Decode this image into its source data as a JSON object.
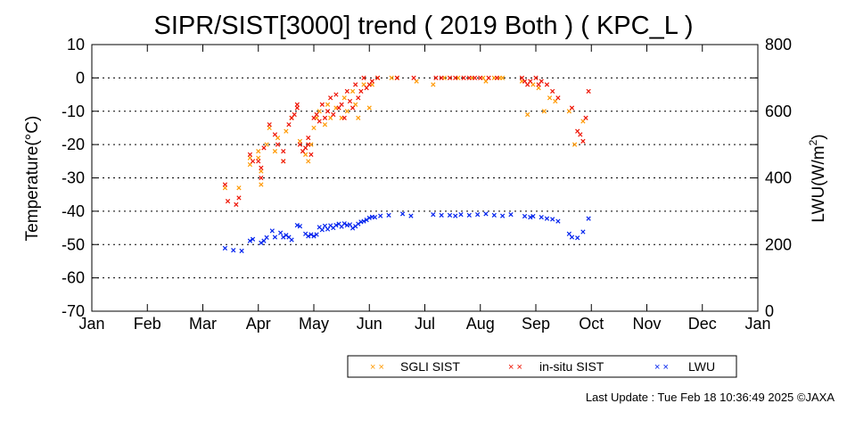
{
  "chart_data": {
    "type": "scatter",
    "title": "SIPR/SIST[3000] trend ( 2019 Both ) ( KPC_L )",
    "ylabel": "Temperature(°C)",
    "y2label_main": "LWU(W/m",
    "y2label_sup": "2",
    "y2label_end": ")",
    "ylim": [
      -70,
      10
    ],
    "yticks": [
      "10",
      "0",
      "-10",
      "-20",
      "-30",
      "-40",
      "-50",
      "-60",
      "-70"
    ],
    "y2lim": [
      0,
      800
    ],
    "y2ticks": [
      "800",
      "600",
      "400",
      "200",
      "0"
    ],
    "months": [
      "Jan",
      "Feb",
      "Mar",
      "Apr",
      "May",
      "Jun",
      "Jul",
      "Aug",
      "Sep",
      "Oct",
      "Nov",
      "Dec",
      "Jan"
    ],
    "grid": "dotted horizontal",
    "legend_position": "bottom-right",
    "series": [
      {
        "name": "SGLI SIST",
        "color": "#ff9900",
        "axis": "left",
        "points": [
          [
            3.4,
            -33
          ],
          [
            3.65,
            -33
          ],
          [
            3.85,
            -24
          ],
          [
            3.85,
            -26
          ],
          [
            4.0,
            -22
          ],
          [
            4.0,
            -24
          ],
          [
            4.05,
            -28
          ],
          [
            4.05,
            -32
          ],
          [
            4.15,
            -20
          ],
          [
            4.2,
            -15
          ],
          [
            4.3,
            -22
          ],
          [
            4.35,
            -18
          ],
          [
            4.45,
            -25
          ],
          [
            4.5,
            -16
          ],
          [
            4.6,
            -12
          ],
          [
            4.75,
            -19
          ],
          [
            4.85,
            -23
          ],
          [
            4.9,
            -25
          ],
          [
            4.95,
            -20
          ],
          [
            5.0,
            -15
          ],
          [
            5.05,
            -12
          ],
          [
            5.1,
            -10
          ],
          [
            5.2,
            -14
          ],
          [
            5.25,
            -8
          ],
          [
            5.3,
            -12
          ],
          [
            5.4,
            -9
          ],
          [
            5.5,
            -12
          ],
          [
            5.55,
            -6
          ],
          [
            5.6,
            -10
          ],
          [
            5.7,
            -4
          ],
          [
            5.75,
            -8
          ],
          [
            5.8,
            -12
          ],
          [
            5.9,
            -2
          ],
          [
            6.0,
            -9
          ],
          [
            6.05,
            -2
          ],
          [
            6.15,
            0
          ],
          [
            6.4,
            0
          ],
          [
            6.5,
            0
          ],
          [
            6.85,
            -1
          ],
          [
            7.15,
            -2
          ],
          [
            7.35,
            0
          ],
          [
            7.6,
            0
          ],
          [
            7.85,
            0
          ],
          [
            8.05,
            0
          ],
          [
            8.1,
            -1
          ],
          [
            8.25,
            0
          ],
          [
            8.35,
            0
          ],
          [
            8.4,
            0
          ],
          [
            8.75,
            -1
          ],
          [
            8.85,
            -11
          ],
          [
            8.95,
            -2
          ],
          [
            9.05,
            -3
          ],
          [
            9.15,
            -10
          ],
          [
            9.25,
            -6
          ],
          [
            9.35,
            -7
          ],
          [
            9.6,
            -10
          ],
          [
            9.7,
            -20
          ],
          [
            9.85,
            -13
          ]
        ]
      },
      {
        "name": "in-situ SIST",
        "color": "#ee1100",
        "axis": "left",
        "points": [
          [
            3.4,
            -32
          ],
          [
            3.45,
            -37
          ],
          [
            3.6,
            -38
          ],
          [
            3.65,
            -36
          ],
          [
            3.85,
            -23
          ],
          [
            3.9,
            -25
          ],
          [
            4.0,
            -25
          ],
          [
            4.05,
            -27
          ],
          [
            4.05,
            -30
          ],
          [
            4.1,
            -21
          ],
          [
            4.2,
            -14
          ],
          [
            4.3,
            -17
          ],
          [
            4.35,
            -20
          ],
          [
            4.45,
            -22
          ],
          [
            4.45,
            -25
          ],
          [
            4.55,
            -14
          ],
          [
            4.6,
            -12
          ],
          [
            4.65,
            -11
          ],
          [
            4.7,
            -8
          ],
          [
            4.7,
            -9
          ],
          [
            4.75,
            -20
          ],
          [
            4.8,
            -22
          ],
          [
            4.85,
            -21
          ],
          [
            4.9,
            -18
          ],
          [
            4.9,
            -20
          ],
          [
            4.95,
            -23
          ],
          [
            5.0,
            -12
          ],
          [
            5.05,
            -11
          ],
          [
            5.1,
            -13
          ],
          [
            5.15,
            -8
          ],
          [
            5.2,
            -12
          ],
          [
            5.25,
            -10
          ],
          [
            5.3,
            -6
          ],
          [
            5.35,
            -11
          ],
          [
            5.4,
            -5
          ],
          [
            5.45,
            -9
          ],
          [
            5.5,
            -8
          ],
          [
            5.55,
            -12
          ],
          [
            5.6,
            -4
          ],
          [
            5.65,
            -7
          ],
          [
            5.7,
            -9
          ],
          [
            5.75,
            -2
          ],
          [
            5.8,
            -6
          ],
          [
            5.85,
            -4
          ],
          [
            5.9,
            0
          ],
          [
            5.95,
            -3
          ],
          [
            6.0,
            -2
          ],
          [
            6.05,
            -1
          ],
          [
            6.15,
            0
          ],
          [
            6.5,
            0
          ],
          [
            6.8,
            0
          ],
          [
            7.2,
            0
          ],
          [
            7.3,
            0
          ],
          [
            7.45,
            0
          ],
          [
            7.55,
            0
          ],
          [
            7.7,
            0
          ],
          [
            7.8,
            0
          ],
          [
            7.9,
            0
          ],
          [
            8.0,
            0
          ],
          [
            8.15,
            0
          ],
          [
            8.3,
            0
          ],
          [
            8.75,
            0
          ],
          [
            8.8,
            -1
          ],
          [
            8.85,
            -2
          ],
          [
            8.9,
            -1
          ],
          [
            9.0,
            0
          ],
          [
            9.05,
            -2
          ],
          [
            9.1,
            -1
          ],
          [
            9.2,
            -2
          ],
          [
            9.3,
            -4
          ],
          [
            9.4,
            -6
          ],
          [
            9.65,
            -9
          ],
          [
            9.75,
            -16
          ],
          [
            9.8,
            -17
          ],
          [
            9.85,
            -19
          ],
          [
            9.9,
            -12
          ],
          [
            9.95,
            -4
          ]
        ]
      },
      {
        "name": "LWU",
        "color": "#0022ee",
        "axis": "right",
        "points": [
          [
            3.4,
            189
          ],
          [
            3.55,
            183
          ],
          [
            3.7,
            181
          ],
          [
            3.85,
            211
          ],
          [
            3.9,
            216
          ],
          [
            4.05,
            205
          ],
          [
            4.1,
            211
          ],
          [
            4.15,
            221
          ],
          [
            4.25,
            241
          ],
          [
            4.3,
            222
          ],
          [
            4.4,
            235
          ],
          [
            4.45,
            222
          ],
          [
            4.5,
            228
          ],
          [
            4.55,
            222
          ],
          [
            4.6,
            214
          ],
          [
            4.7,
            258
          ],
          [
            4.75,
            255
          ],
          [
            4.85,
            232
          ],
          [
            4.9,
            225
          ],
          [
            4.95,
            230
          ],
          [
            5.0,
            225
          ],
          [
            5.05,
            230
          ],
          [
            5.1,
            252
          ],
          [
            5.15,
            244
          ],
          [
            5.2,
            256
          ],
          [
            5.25,
            246
          ],
          [
            5.3,
            257
          ],
          [
            5.35,
            250
          ],
          [
            5.4,
            258
          ],
          [
            5.45,
            262
          ],
          [
            5.5,
            254
          ],
          [
            5.55,
            263
          ],
          [
            5.6,
            258
          ],
          [
            5.65,
            260
          ],
          [
            5.7,
            249
          ],
          [
            5.75,
            255
          ],
          [
            5.8,
            262
          ],
          [
            5.85,
            268
          ],
          [
            5.9,
            270
          ],
          [
            5.95,
            274
          ],
          [
            6.0,
            280
          ],
          [
            6.05,
            283
          ],
          [
            6.1,
            282
          ],
          [
            6.2,
            286
          ],
          [
            6.35,
            288
          ],
          [
            6.6,
            292
          ],
          [
            6.75,
            286
          ],
          [
            7.15,
            290
          ],
          [
            7.3,
            288
          ],
          [
            7.45,
            288
          ],
          [
            7.55,
            286
          ],
          [
            7.65,
            290
          ],
          [
            7.8,
            288
          ],
          [
            7.95,
            290
          ],
          [
            8.1,
            292
          ],
          [
            8.25,
            288
          ],
          [
            8.4,
            286
          ],
          [
            8.55,
            290
          ],
          [
            8.8,
            285
          ],
          [
            8.9,
            282
          ],
          [
            8.95,
            285
          ],
          [
            9.1,
            282
          ],
          [
            9.2,
            278
          ],
          [
            9.3,
            276
          ],
          [
            9.4,
            270
          ],
          [
            9.6,
            232
          ],
          [
            9.65,
            222
          ],
          [
            9.75,
            220
          ],
          [
            9.85,
            238
          ],
          [
            9.95,
            278
          ]
        ]
      }
    ]
  },
  "footer": "Last Update : Tue Feb 18 10:36:49 2025 ©JAXA"
}
